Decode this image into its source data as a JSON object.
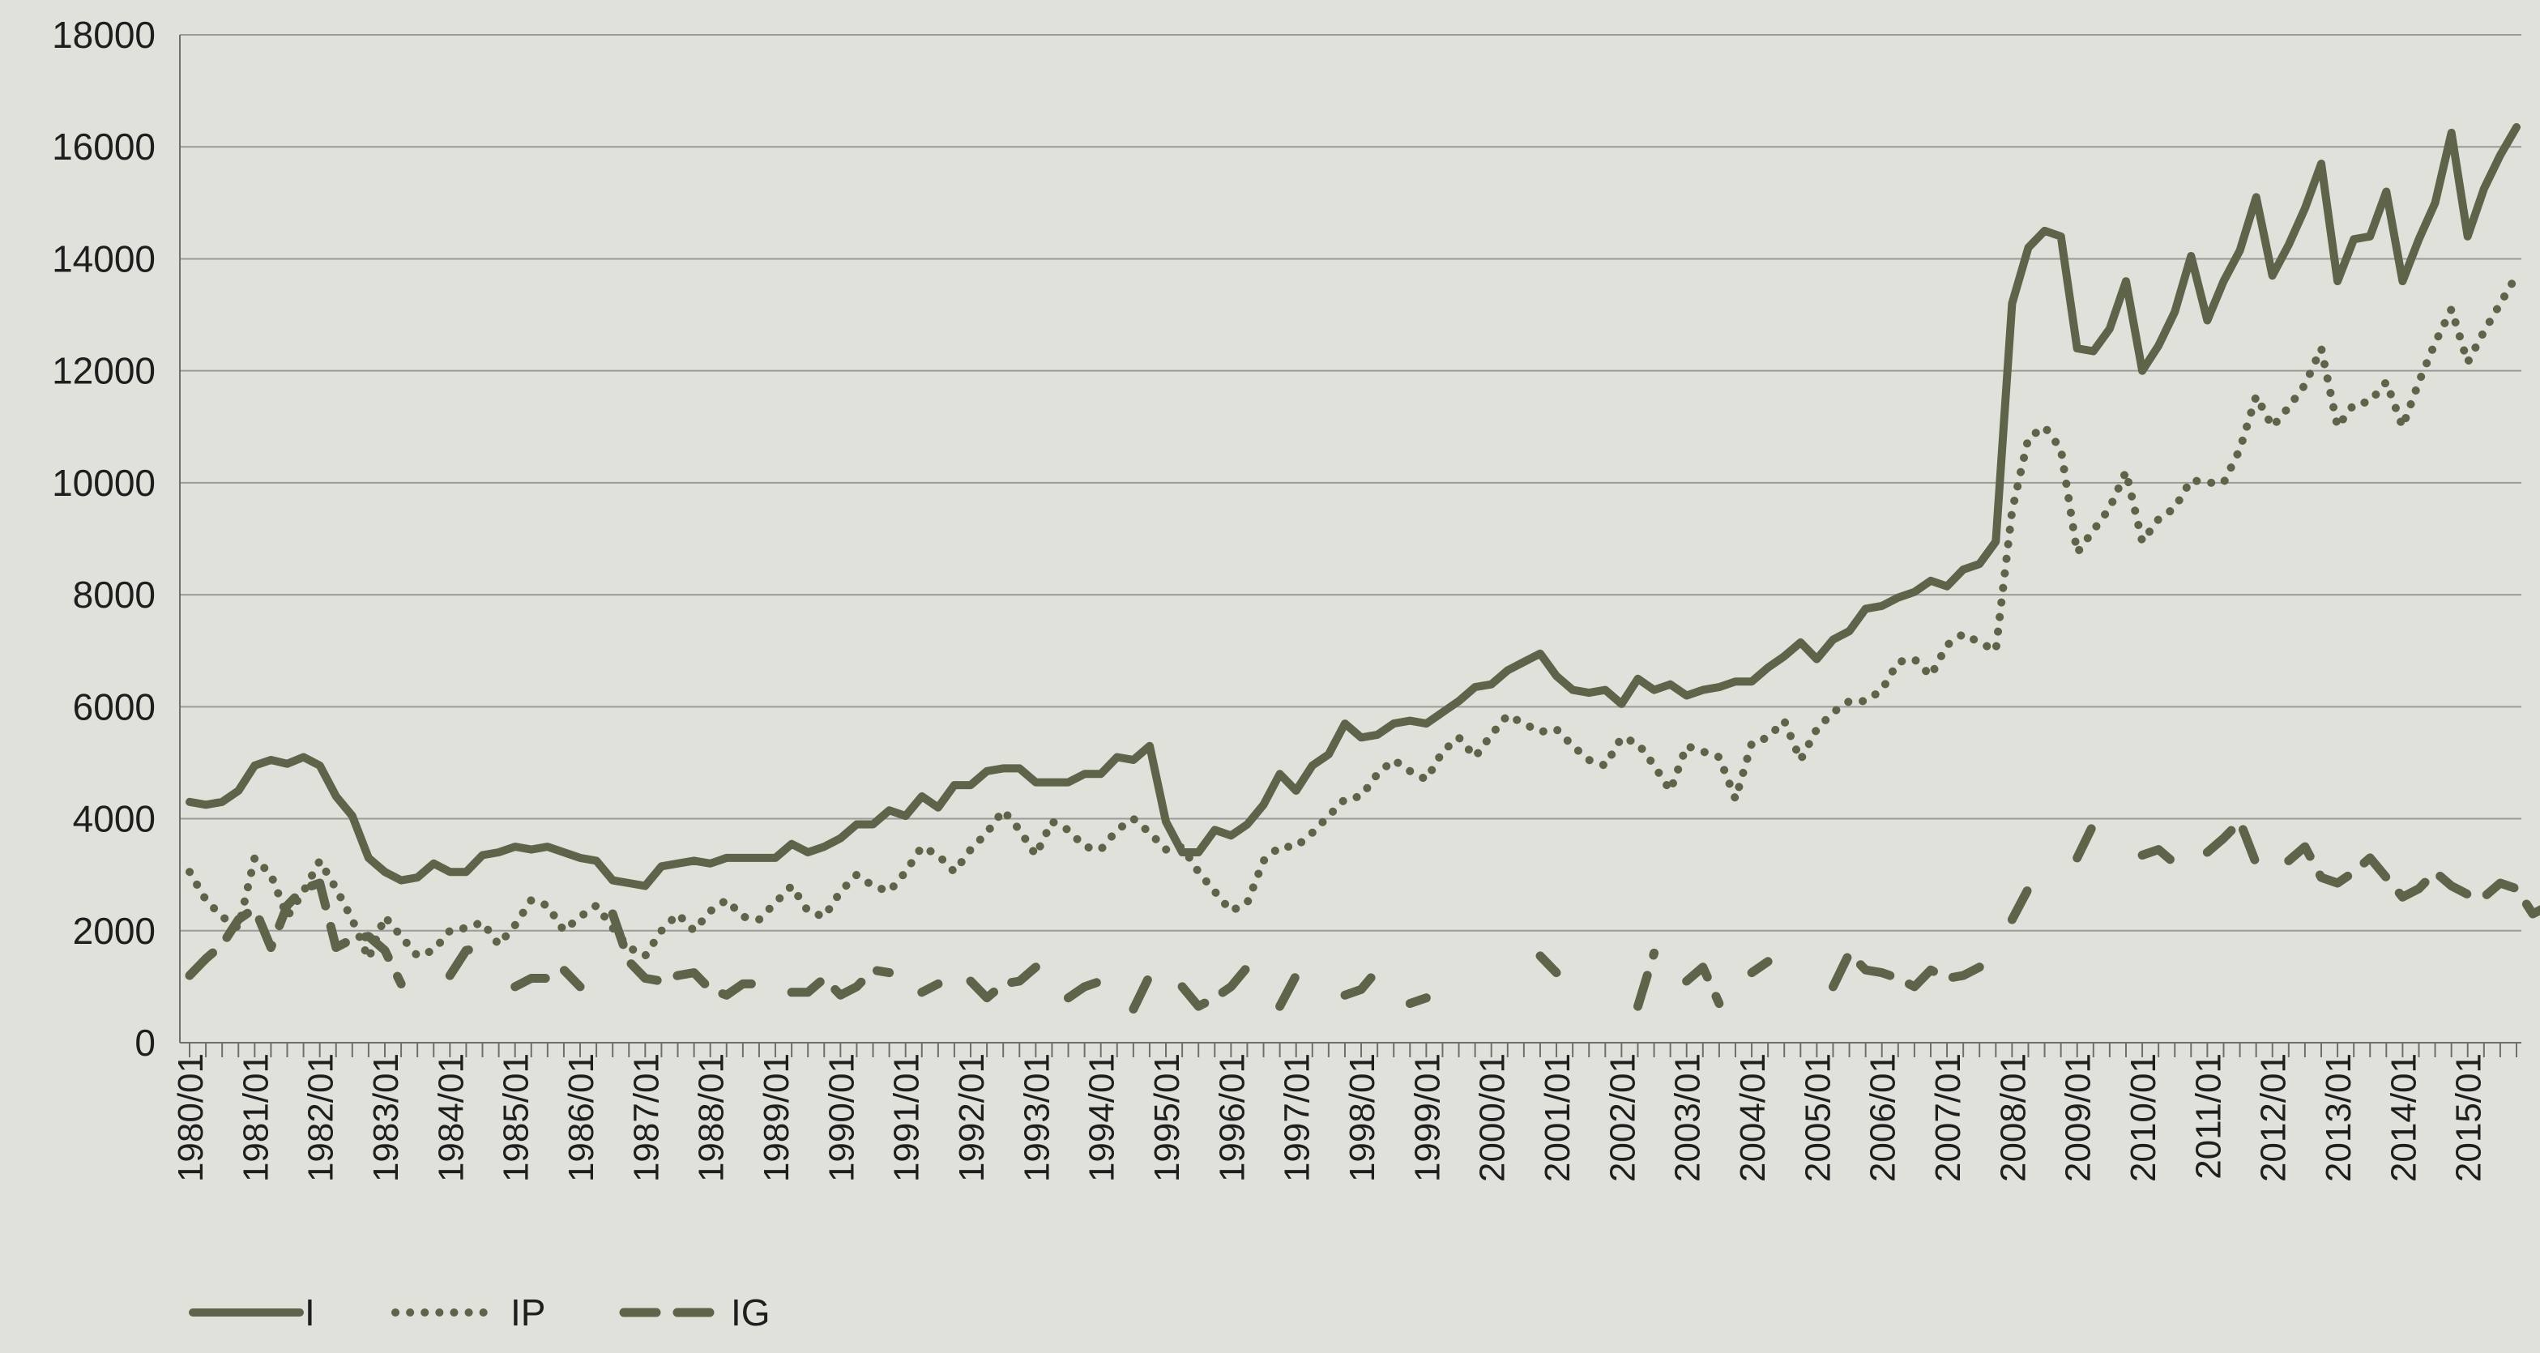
{
  "chart_data": {
    "type": "line",
    "title": "",
    "xlabel": "",
    "ylabel": "",
    "ylim": [
      0,
      18000
    ],
    "yticks": [
      0,
      2000,
      4000,
      6000,
      8000,
      10000,
      12000,
      14000,
      16000,
      18000
    ],
    "ytick_labels": [
      "0",
      "2000",
      "4000",
      "6000",
      "8000",
      "10000",
      "12000",
      "14000",
      "16000",
      "18000"
    ],
    "x_start": "1980/01",
    "x_interval": "quarterly",
    "xtick_labels": [
      "1980/01",
      "1981/01",
      "1982/01",
      "1983/01",
      "1984/01",
      "1985/01",
      "1986/01",
      "1987/01",
      "1988/01",
      "1989/01",
      "1990/01",
      "1991/01",
      "1992/01",
      "1993/01",
      "1994/01",
      "1995/01",
      "1996/01",
      "1997/01",
      "1998/01",
      "1999/01",
      "2000/01",
      "2001/01",
      "2002/01",
      "2003/01",
      "2004/01",
      "2005/01",
      "2006/01",
      "2007/01",
      "2008/01",
      "2009/01",
      "2010/01",
      "2011/01",
      "2012/01",
      "2013/01",
      "2014/01",
      "2015/01"
    ],
    "grid": "horizontal",
    "legend_position": "bottom-left",
    "line_color": "#5d6449",
    "series": [
      {
        "name": "I",
        "style": "solid",
        "values": [
          4300,
          4250,
          4300,
          4500,
          4950,
          5050,
          4980,
          5100,
          4950,
          4400,
          4050,
          3300,
          3050,
          2900,
          2950,
          3200,
          3050,
          3050,
          3350,
          3400,
          3500,
          3450,
          3500,
          3400,
          3300,
          3250,
          2900,
          2850,
          2800,
          3150,
          3200,
          3250,
          3200,
          3300,
          3300,
          3300,
          3300,
          3550,
          3400,
          3500,
          3650,
          3900,
          3900,
          4150,
          4050,
          4400,
          4200,
          4600,
          4600,
          4850,
          4900,
          4900,
          4650,
          4650,
          4650,
          4800,
          4800,
          5100,
          5050,
          5300,
          3950,
          3400,
          3400,
          3800,
          3700,
          3900,
          4250,
          4800,
          4500,
          4950,
          5150,
          5700,
          5450,
          5500,
          5700,
          5750,
          5700,
          5900,
          6100,
          6350,
          6400,
          6650,
          6800,
          6950,
          6550,
          6300,
          6250,
          6300,
          6050,
          6500,
          6300,
          6400,
          6200,
          6300,
          6350,
          6450,
          6450,
          6700,
          6900,
          7150,
          6850,
          7200,
          7350,
          7750,
          7800,
          7950,
          8050,
          8250,
          8150,
          8450,
          8550,
          8950,
          13200,
          14200,
          14500,
          14400,
          12400,
          12350,
          12750,
          13600,
          12000,
          12450,
          13050,
          14050,
          12900,
          13600,
          14150,
          15100,
          13700,
          14250,
          14900,
          15700,
          13600,
          14350,
          14400,
          15200,
          13600,
          14350,
          15000,
          16250,
          14400,
          15250,
          15850,
          16350
        ]
      },
      {
        "name": "IP",
        "style": "dotted",
        "values": [
          3050,
          2550,
          2250,
          2050,
          3300,
          3000,
          2250,
          2700,
          3250,
          2750,
          2200,
          1500,
          2250,
          1900,
          1550,
          1650,
          2000,
          2050,
          2150,
          1750,
          2100,
          2550,
          2450,
          2000,
          2250,
          2450,
          2050,
          1700,
          1550,
          2000,
          2300,
          2000,
          2350,
          2550,
          2250,
          2200,
          2500,
          2800,
          2350,
          2250,
          2700,
          3000,
          2800,
          2700,
          3050,
          3500,
          3350,
          3050,
          3450,
          3750,
          4150,
          3800,
          3350,
          3950,
          3800,
          3500,
          3450,
          3800,
          4000,
          3750,
          3450,
          3500,
          3050,
          2700,
          2350,
          2500,
          3250,
          3500,
          3500,
          3750,
          4050,
          4350,
          4400,
          4800,
          5050,
          4850,
          4700,
          5200,
          5450,
          5100,
          5500,
          5850,
          5700,
          5550,
          5600,
          5300,
          5050,
          4950,
          5450,
          5350,
          4950,
          4500,
          5300,
          5200,
          5100,
          4350,
          5350,
          5450,
          5750,
          5050,
          5600,
          5900,
          6100,
          6100,
          6300,
          6800,
          6850,
          6550,
          7100,
          7300,
          7150,
          7000,
          9500,
          10800,
          11000,
          10600,
          8750,
          9150,
          9550,
          10200,
          8950,
          9350,
          9550,
          10050,
          10000,
          10000,
          10600,
          11550,
          11000,
          11350,
          11750,
          12400,
          11000,
          11400,
          11450,
          11800,
          11000,
          11800,
          12500,
          13100,
          12150,
          12700,
          13200,
          13700
        ]
      },
      {
        "name": "IG",
        "style": "dashed",
        "values": [
          1200,
          1500,
          1750,
          2200,
          2400,
          1700,
          2450,
          2750,
          2850,
          1700,
          1850,
          1900,
          1650,
          1050,
          null,
          null,
          1200,
          1650,
          1700,
          null,
          1000,
          1150,
          1150,
          1300,
          1000,
          null,
          2300,
          1450,
          1150,
          1100,
          1200,
          1250,
          950,
          850,
          1050,
          1050,
          null,
          900,
          900,
          1150,
          850,
          1000,
          1300,
          1250,
          null,
          900,
          1050,
          null,
          1100,
          800,
          1050,
          1100,
          1350,
          null,
          800,
          1000,
          1100,
          null,
          600,
          1200,
          null,
          1000,
          650,
          800,
          1000,
          1350,
          null,
          650,
          1200,
          null,
          null,
          850,
          950,
          1300,
          null,
          700,
          800,
          null,
          null,
          1100,
          null,
          650,
          null,
          1550,
          1250,
          null,
          1200,
          null,
          null,
          650,
          1600,
          null,
          1100,
          1350,
          700,
          null,
          1250,
          1450,
          null,
          1500,
          null,
          1000,
          1600,
          1300,
          1250,
          1150,
          1000,
          1300,
          1150,
          1200,
          1350,
          null,
          2200,
          2750,
          null,
          null,
          3300,
          3900,
          null,
          null,
          3350,
          3450,
          3200,
          null,
          3400,
          3650,
          3950,
          3200,
          null,
          3250,
          3500,
          2950,
          2850,
          3050,
          3300,
          2950,
          2600,
          2750,
          3050,
          2800,
          2650,
          2600,
          2850,
          2750,
          2300,
          2450
        ]
      }
    ]
  }
}
